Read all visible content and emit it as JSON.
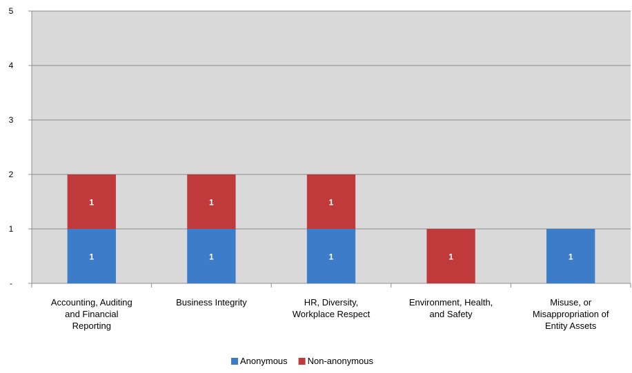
{
  "chart_data": {
    "type": "bar",
    "stacked": true,
    "title": "",
    "xlabel": "",
    "ylabel": "",
    "categories": [
      [
        "Accounting, Auditing",
        "and Financial",
        "Reporting"
      ],
      [
        "Business Integrity"
      ],
      [
        "HR, Diversity,",
        "Workplace Respect"
      ],
      [
        "Environment, Health,",
        "and Safety"
      ],
      [
        "Misuse, or",
        "Misappropriation of",
        "Entity Assets"
      ]
    ],
    "series": [
      {
        "name": "Anonymous",
        "color": "#3d7cc9",
        "values": [
          1,
          1,
          1,
          0,
          1
        ],
        "labels": [
          "1",
          "1",
          "1",
          "",
          "1"
        ]
      },
      {
        "name": "Non-anonymous",
        "color": "#c0393b",
        "values": [
          1,
          1,
          1,
          1,
          0
        ],
        "labels": [
          "1",
          "1",
          "1",
          "1",
          ""
        ]
      }
    ],
    "ylim": [
      0,
      5
    ],
    "yticks": [
      0,
      1,
      2,
      3,
      4,
      5
    ],
    "ytick_labels": [
      "-",
      "1",
      "2",
      "3",
      "4",
      "5"
    ],
    "grid": true,
    "plot_background": "#d9d9d9",
    "legend_position": "bottom"
  }
}
